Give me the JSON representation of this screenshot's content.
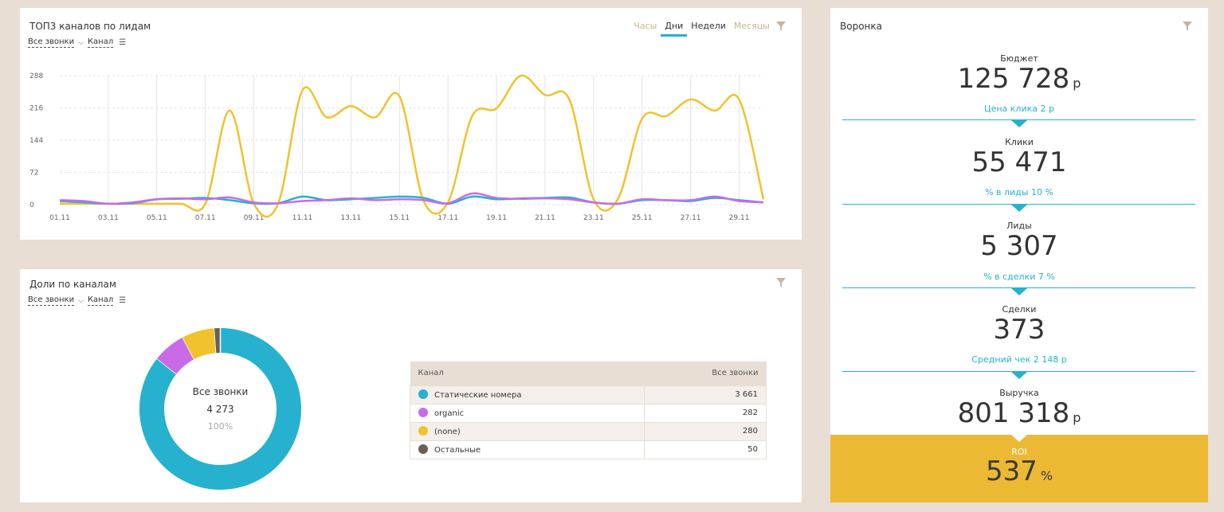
{
  "leads_card": {
    "title": "ТОП3 каналов по лидам",
    "filter_calls": "Все звонки",
    "filter_channel": "Канал",
    "periods": [
      "Часы",
      "Дни",
      "Недели",
      "Месяцы"
    ],
    "active_period": "Дни"
  },
  "chart_data": {
    "type": "line",
    "x": [
      "01.11",
      "02.11",
      "03.11",
      "04.11",
      "05.11",
      "06.11",
      "07.11",
      "08.11",
      "09.11",
      "10.11",
      "11.11",
      "12.11",
      "13.11",
      "14.11",
      "15.11",
      "16.11",
      "17.11",
      "18.11",
      "19.11",
      "20.11",
      "21.11",
      "22.11",
      "23.11",
      "24.11",
      "25.11",
      "26.11",
      "27.11",
      "28.11",
      "29.11",
      "30.11"
    ],
    "xticks": [
      "01.11",
      "03.11",
      "05.11",
      "07.11",
      "09.11",
      "11.11",
      "13.11",
      "15.11",
      "17.11",
      "19.11",
      "21.11",
      "23.11",
      "25.11",
      "27.11",
      "29.11"
    ],
    "yticks": [
      0,
      72,
      144,
      216,
      288
    ],
    "ylim": [
      0,
      288
    ],
    "grid": true,
    "series": [
      {
        "color": "#f2c12e",
        "values": [
          2,
          2,
          2,
          2,
          2,
          2,
          2,
          210,
          2,
          2,
          255,
          195,
          220,
          195,
          242,
          8,
          5,
          198,
          215,
          288,
          245,
          235,
          12,
          12,
          192,
          198,
          235,
          210,
          235,
          12
        ]
      },
      {
        "color": "#26b1cf",
        "values": [
          8,
          5,
          2,
          3,
          12,
          13,
          15,
          10,
          3,
          3,
          18,
          10,
          12,
          15,
          18,
          15,
          2,
          18,
          12,
          14,
          15,
          16,
          5,
          2,
          10,
          10,
          8,
          15,
          10,
          5
        ]
      },
      {
        "color": "#c96be8",
        "values": [
          10,
          8,
          2,
          5,
          12,
          14,
          12,
          16,
          5,
          3,
          8,
          10,
          14,
          10,
          12,
          10,
          3,
          25,
          15,
          13,
          14,
          12,
          5,
          2,
          12,
          10,
          10,
          18,
          8,
          5
        ]
      }
    ]
  },
  "share_card": {
    "title": "Доли по каналам",
    "filter_calls": "Все звонки",
    "filter_channel": "Канал",
    "donut_title": "Все звонки",
    "donut_total": "4 273",
    "donut_pct": "100%",
    "table_header_channel": "Канал",
    "table_header_calls": "Все звонки",
    "rows": [
      {
        "label": "Статические номера",
        "value": "3 661",
        "color": "#26b1cf",
        "num": 3661
      },
      {
        "label": "organic",
        "value": "282",
        "color": "#c96be8",
        "num": 282
      },
      {
        "label": "(none)",
        "value": "280",
        "color": "#f2c12e",
        "num": 280
      },
      {
        "label": "Остальные",
        "value": "50",
        "color": "#6b5e52",
        "num": 50
      }
    ]
  },
  "funnel_card": {
    "title": "Воронка",
    "budget_label": "Бюджет",
    "budget_value": "125 728",
    "currency": "р",
    "conv1": "Цена клика 2 р",
    "clicks_label": "Клики",
    "clicks_value": "55 471",
    "conv2": "% в лиды 10 %",
    "leads_label": "Лиды",
    "leads_value": "5 307",
    "conv3": "% в сделки 7 %",
    "deals_label": "Сделки",
    "deals_value": "373",
    "conv4": "Средний чек 2 148 р",
    "revenue_label": "Выручка",
    "revenue_value": "801 318",
    "roi_label": "ROI",
    "roi_value": "537",
    "roi_unit": "%"
  },
  "colors": {
    "accent": "#26b1cf",
    "roi_bg": "#ecb935",
    "page_bg": "#e8ded4"
  }
}
